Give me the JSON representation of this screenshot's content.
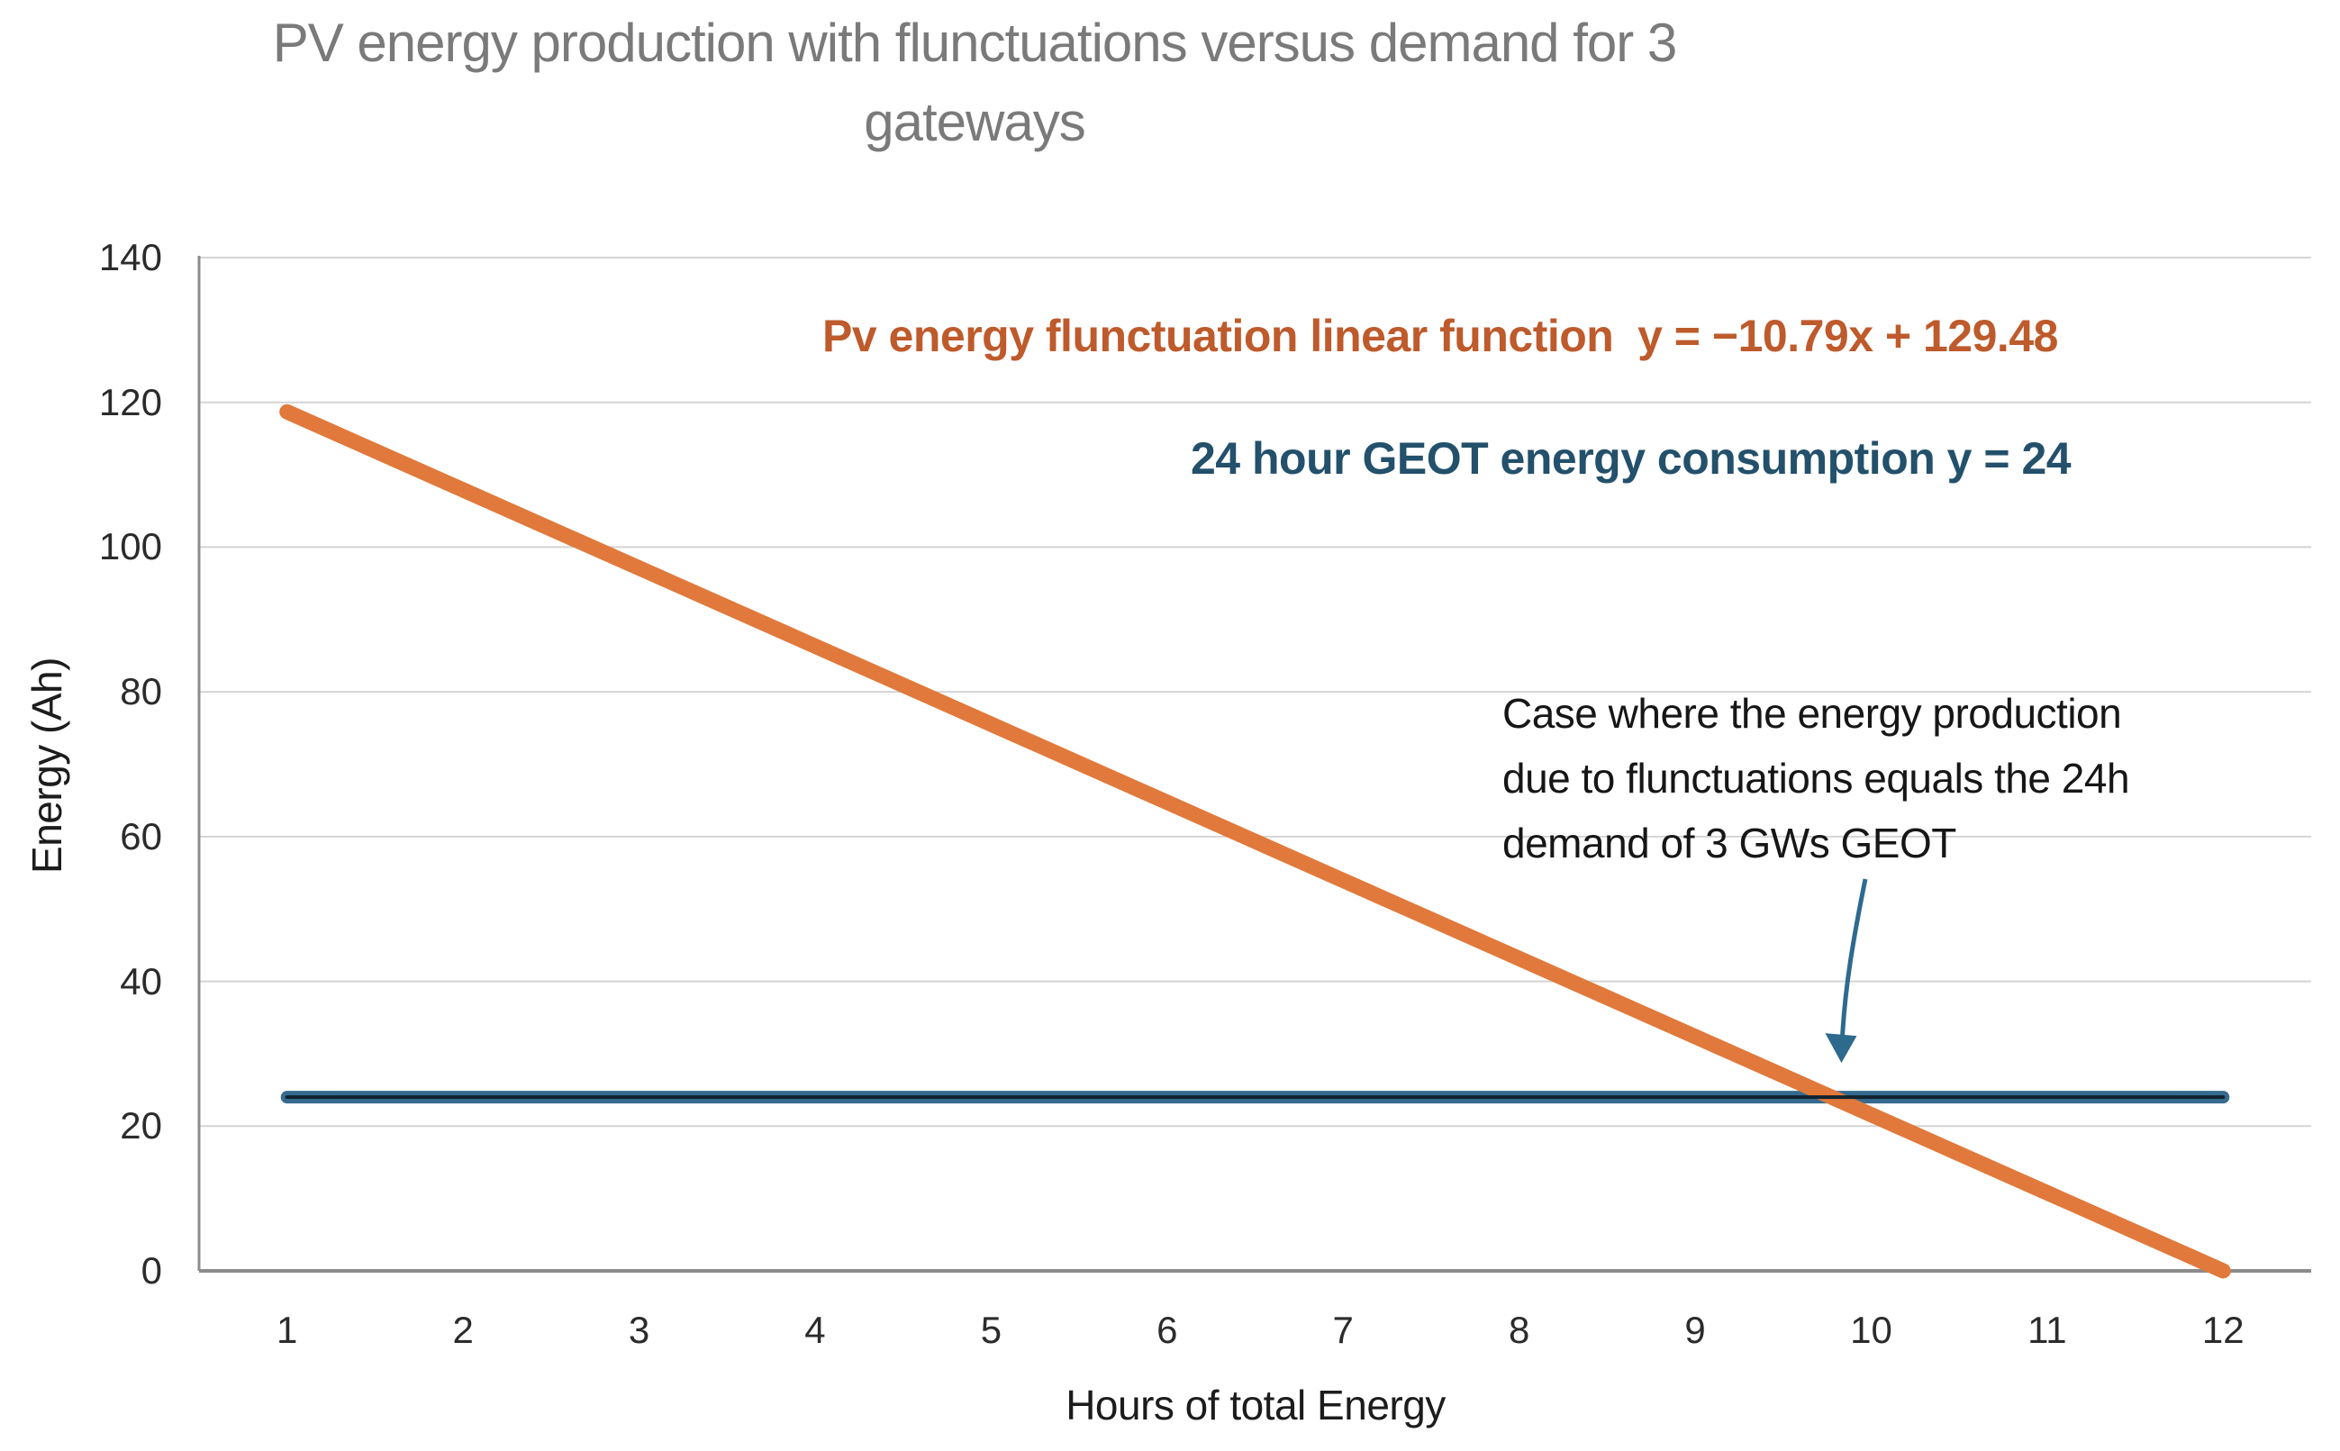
{
  "title": {
    "lines": [
      "PV energy production with flunctuations versus demand for 3",
      "gateways"
    ]
  },
  "labels": {
    "pv_label": "Pv energy flunctuation linear function  y = −10.79x + 129.48",
    "geot_label": "24 hour GEOT energy consumption y = 24",
    "annotation_lines": [
      "Case where the energy production",
      "due to flunctuations equals the 24h",
      "demand of 3 GWs GEOT"
    ]
  },
  "axes": {
    "y_axis_title": "Energy (Ah)",
    "x_axis_title": "Hours of total Energy",
    "y_tick_labels": [
      "0",
      "20",
      "40",
      "60",
      "80",
      "100",
      "120",
      "140"
    ],
    "x_tick_labels": [
      "1",
      "2",
      "3",
      "4",
      "5",
      "6",
      "7",
      "8",
      "9",
      "10",
      "11",
      "12"
    ]
  },
  "chart_data": {
    "type": "line",
    "title": "PV energy production with flunctuations versus demand for 3 gateways",
    "xlabel": "Hours of total Energy",
    "ylabel": "Energy (Ah)",
    "x": [
      1,
      2,
      3,
      4,
      5,
      6,
      7,
      8,
      9,
      10,
      11,
      12
    ],
    "ylim": [
      0,
      140
    ],
    "yticks": [
      0,
      20,
      40,
      60,
      80,
      100,
      120,
      140
    ],
    "grid": "horizontal",
    "legend_position": "none",
    "series": [
      {
        "name": "Pv energy flunctuation linear function",
        "equation": "y = −10.79x + 129.48",
        "values": [
          118.69,
          107.9,
          97.11,
          86.32,
          75.53,
          64.74,
          53.95,
          43.16,
          32.37,
          21.58,
          10.79,
          0.0
        ]
      },
      {
        "name": "24 hour GEOT energy consumption",
        "equation": "y = 24",
        "values": [
          24,
          24,
          24,
          24,
          24,
          24,
          24,
          24,
          24,
          24,
          24,
          24
        ]
      }
    ],
    "annotation": {
      "text": "Case where the energy production due to flunctuations equals the 24h demand of 3 GWs GEOT",
      "arrow_points_to": {
        "x": 9.78,
        "y": 24
      }
    }
  },
  "colors": {
    "background": "#FFFFFF",
    "title_text": "#7A7A7A",
    "pv_line": "#E0793B",
    "pv_label_text": "#BE5A2B",
    "geot_line": "#366B8F",
    "geot_line_core": "#10222E",
    "geot_label_text": "#23506B",
    "annotation_text": "#161616",
    "annotation_arrow": "#2E6A8E",
    "gridline": "#D4D4D4",
    "axis_line": "#8C8C8C",
    "tick_text": "#2B2B2B",
    "axis_title_text": "#1C1C1C"
  }
}
